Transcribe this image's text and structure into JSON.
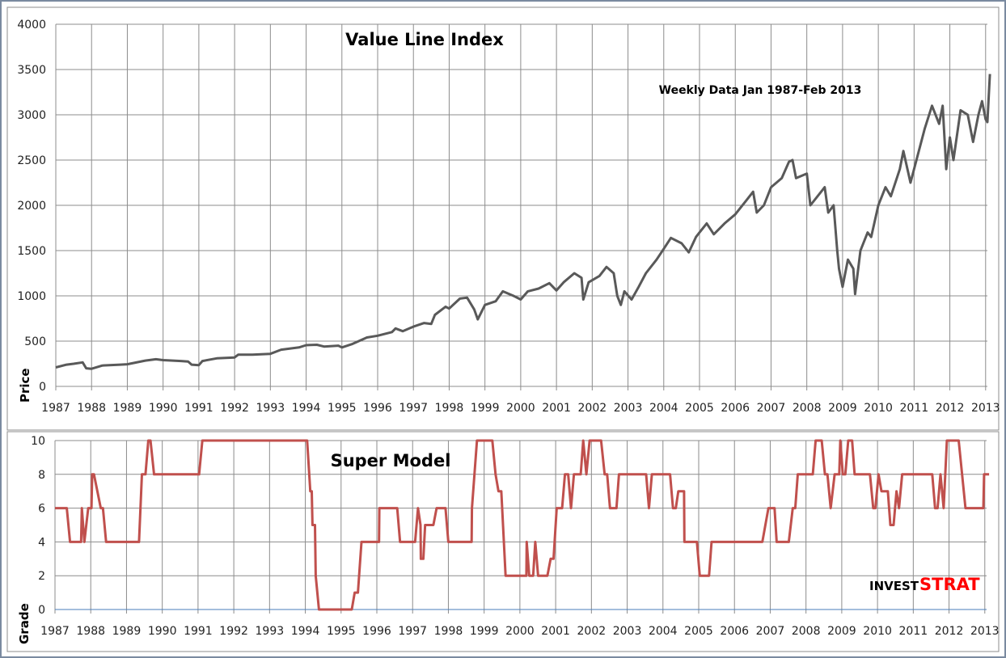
{
  "chart_data": [
    {
      "type": "line",
      "title": "Value Line Index",
      "subtitle": "Weekly Data Jan 1987-Feb 2013",
      "xlabel": "",
      "ylabel": "Price",
      "xlim": [
        1987,
        2013.05
      ],
      "ylim": [
        0,
        4000
      ],
      "yticks": [
        0,
        500,
        1000,
        1500,
        2000,
        2500,
        3000,
        3500,
        4000
      ],
      "xticks": [
        1987,
        1988,
        1989,
        1990,
        1991,
        1992,
        1993,
        1994,
        1995,
        1996,
        1997,
        1998,
        1999,
        2000,
        2001,
        2002,
        2003,
        2004,
        2005,
        2006,
        2007,
        2008,
        2009,
        2010,
        2011,
        2012,
        2013
      ],
      "grid": true,
      "line_color": "#595959",
      "points": [
        [
          1987.0,
          210
        ],
        [
          1987.3,
          240
        ],
        [
          1987.5,
          250
        ],
        [
          1987.75,
          265
        ],
        [
          1987.85,
          200
        ],
        [
          1988.0,
          195
        ],
        [
          1988.3,
          230
        ],
        [
          1988.8,
          240
        ],
        [
          1989.0,
          245
        ],
        [
          1989.5,
          285
        ],
        [
          1989.8,
          300
        ],
        [
          1990.0,
          290
        ],
        [
          1990.5,
          280
        ],
        [
          1990.7,
          275
        ],
        [
          1990.8,
          240
        ],
        [
          1991.0,
          235
        ],
        [
          1991.1,
          280
        ],
        [
          1991.5,
          310
        ],
        [
          1992.0,
          320
        ],
        [
          1992.1,
          350
        ],
        [
          1992.5,
          350
        ],
        [
          1993.0,
          360
        ],
        [
          1993.3,
          405
        ],
        [
          1993.8,
          430
        ],
        [
          1994.0,
          455
        ],
        [
          1994.3,
          460
        ],
        [
          1994.5,
          440
        ],
        [
          1994.9,
          450
        ],
        [
          1995.0,
          430
        ],
        [
          1995.3,
          470
        ],
        [
          1995.7,
          540
        ],
        [
          1996.0,
          560
        ],
        [
          1996.4,
          600
        ],
        [
          1996.5,
          640
        ],
        [
          1996.7,
          610
        ],
        [
          1997.0,
          660
        ],
        [
          1997.3,
          700
        ],
        [
          1997.5,
          690
        ],
        [
          1997.6,
          790
        ],
        [
          1997.9,
          880
        ],
        [
          1998.0,
          860
        ],
        [
          1998.3,
          970
        ],
        [
          1998.5,
          980
        ],
        [
          1998.7,
          850
        ],
        [
          1998.8,
          740
        ],
        [
          1999.0,
          900
        ],
        [
          1999.3,
          940
        ],
        [
          1999.5,
          1050
        ],
        [
          1999.8,
          1000
        ],
        [
          2000.0,
          960
        ],
        [
          2000.2,
          1050
        ],
        [
          2000.5,
          1080
        ],
        [
          2000.8,
          1140
        ],
        [
          2001.0,
          1060
        ],
        [
          2001.2,
          1150
        ],
        [
          2001.5,
          1250
        ],
        [
          2001.7,
          1200
        ],
        [
          2001.75,
          960
        ],
        [
          2001.9,
          1150
        ],
        [
          2002.2,
          1220
        ],
        [
          2002.4,
          1320
        ],
        [
          2002.6,
          1250
        ],
        [
          2002.7,
          1000
        ],
        [
          2002.8,
          900
        ],
        [
          2002.9,
          1050
        ],
        [
          2003.1,
          960
        ],
        [
          2003.3,
          1100
        ],
        [
          2003.5,
          1250
        ],
        [
          2003.8,
          1400
        ],
        [
          2004.0,
          1520
        ],
        [
          2004.2,
          1640
        ],
        [
          2004.5,
          1580
        ],
        [
          2004.7,
          1480
        ],
        [
          2004.9,
          1650
        ],
        [
          2005.0,
          1700
        ],
        [
          2005.2,
          1800
        ],
        [
          2005.4,
          1680
        ],
        [
          2005.7,
          1800
        ],
        [
          2006.0,
          1900
        ],
        [
          2006.3,
          2050
        ],
        [
          2006.5,
          2150
        ],
        [
          2006.6,
          1920
        ],
        [
          2006.8,
          2000
        ],
        [
          2007.0,
          2200
        ],
        [
          2007.3,
          2300
        ],
        [
          2007.5,
          2480
        ],
        [
          2007.6,
          2500
        ],
        [
          2007.7,
          2300
        ],
        [
          2008.0,
          2350
        ],
        [
          2008.1,
          2000
        ],
        [
          2008.4,
          2150
        ],
        [
          2008.5,
          2200
        ],
        [
          2008.6,
          1920
        ],
        [
          2008.75,
          2000
        ],
        [
          2008.85,
          1500
        ],
        [
          2008.9,
          1300
        ],
        [
          2009.0,
          1100
        ],
        [
          2009.15,
          1400
        ],
        [
          2009.3,
          1300
        ],
        [
          2009.35,
          1020
        ],
        [
          2009.5,
          1500
        ],
        [
          2009.7,
          1700
        ],
        [
          2009.8,
          1650
        ],
        [
          2010.0,
          2000
        ],
        [
          2010.2,
          2200
        ],
        [
          2010.35,
          2100
        ],
        [
          2010.6,
          2400
        ],
        [
          2010.7,
          2600
        ],
        [
          2010.9,
          2250
        ],
        [
          2011.0,
          2400
        ],
        [
          2011.3,
          2850
        ],
        [
          2011.5,
          3100
        ],
        [
          2011.7,
          2900
        ],
        [
          2011.8,
          3100
        ],
        [
          2011.9,
          2400
        ],
        [
          2012.0,
          2750
        ],
        [
          2012.1,
          2500
        ],
        [
          2012.3,
          3050
        ],
        [
          2012.5,
          3000
        ],
        [
          2012.65,
          2700
        ],
        [
          2012.8,
          3000
        ],
        [
          2012.9,
          3150
        ],
        [
          2013.0,
          2950
        ],
        [
          2013.05,
          2920
        ],
        [
          2013.12,
          3450
        ]
      ]
    },
    {
      "type": "line",
      "title": "Super Model",
      "xlabel": "",
      "ylabel": "Grade",
      "xlim": [
        1987,
        2013.05
      ],
      "ylim": [
        0,
        10
      ],
      "yticks": [
        0,
        2,
        4,
        6,
        8,
        10
      ],
      "xticks": [
        1987,
        1988,
        1989,
        1990,
        1991,
        1992,
        1993,
        1994,
        1995,
        1996,
        1997,
        1998,
        1999,
        2000,
        2001,
        2002,
        2003,
        2004,
        2005,
        2006,
        2007,
        2008,
        2009,
        2010,
        2011,
        2012,
        2013
      ],
      "grid": true,
      "line_color": "#c0504d",
      "points": [
        [
          1987.0,
          6
        ],
        [
          1987.33,
          6
        ],
        [
          1987.42,
          4
        ],
        [
          1987.73,
          4
        ],
        [
          1987.75,
          6
        ],
        [
          1987.82,
          4
        ],
        [
          1987.93,
          6
        ],
        [
          1988.02,
          6
        ],
        [
          1988.04,
          8
        ],
        [
          1988.09,
          8
        ],
        [
          1988.28,
          6
        ],
        [
          1988.34,
          6
        ],
        [
          1988.43,
          4
        ],
        [
          1989.35,
          4
        ],
        [
          1989.43,
          8
        ],
        [
          1989.53,
          8
        ],
        [
          1989.61,
          10
        ],
        [
          1989.67,
          10
        ],
        [
          1989.77,
          8
        ],
        [
          1991.03,
          8
        ],
        [
          1991.12,
          10
        ],
        [
          1994.05,
          10
        ],
        [
          1994.14,
          7
        ],
        [
          1994.18,
          7
        ],
        [
          1994.2,
          5
        ],
        [
          1994.27,
          5
        ],
        [
          1994.29,
          2
        ],
        [
          1994.38,
          0
        ],
        [
          1995.3,
          0
        ],
        [
          1995.38,
          1
        ],
        [
          1995.47,
          1
        ],
        [
          1995.57,
          4
        ],
        [
          1996.06,
          4
        ],
        [
          1996.07,
          6
        ],
        [
          1996.57,
          6
        ],
        [
          1996.65,
          4
        ],
        [
          1997.07,
          4
        ],
        [
          1997.15,
          6
        ],
        [
          1997.22,
          5
        ],
        [
          1997.23,
          3
        ],
        [
          1997.3,
          3
        ],
        [
          1997.35,
          5
        ],
        [
          1997.58,
          5
        ],
        [
          1997.67,
          6
        ],
        [
          1997.92,
          6
        ],
        [
          1998.0,
          4
        ],
        [
          1998.65,
          4
        ],
        [
          1998.66,
          6
        ],
        [
          1998.8,
          10
        ],
        [
          1999.23,
          10
        ],
        [
          1999.32,
          8
        ],
        [
          1999.4,
          7
        ],
        [
          1999.48,
          7
        ],
        [
          1999.6,
          2
        ],
        [
          2000.18,
          2
        ],
        [
          2000.19,
          4
        ],
        [
          2000.26,
          2
        ],
        [
          2000.37,
          2
        ],
        [
          2000.43,
          4
        ],
        [
          2000.51,
          2
        ],
        [
          2000.77,
          2
        ],
        [
          2000.86,
          3
        ],
        [
          2000.94,
          3
        ],
        [
          2001.03,
          6
        ],
        [
          2001.18,
          6
        ],
        [
          2001.26,
          8
        ],
        [
          2001.35,
          8
        ],
        [
          2001.43,
          6
        ],
        [
          2001.51,
          8
        ],
        [
          2001.7,
          8
        ],
        [
          2001.77,
          10
        ],
        [
          2001.86,
          8
        ],
        [
          2001.95,
          10
        ],
        [
          2002.27,
          10
        ],
        [
          2002.37,
          8
        ],
        [
          2002.44,
          8
        ],
        [
          2002.52,
          6
        ],
        [
          2002.7,
          6
        ],
        [
          2002.77,
          8
        ],
        [
          2003.53,
          8
        ],
        [
          2003.61,
          6
        ],
        [
          2003.69,
          8
        ],
        [
          2004.2,
          8
        ],
        [
          2004.28,
          6
        ],
        [
          2004.36,
          6
        ],
        [
          2004.43,
          7
        ],
        [
          2004.59,
          7
        ],
        [
          2004.6,
          4
        ],
        [
          2004.95,
          4
        ],
        [
          2005.03,
          2
        ],
        [
          2005.29,
          2
        ],
        [
          2005.36,
          4
        ],
        [
          2006.78,
          4
        ],
        [
          2006.95,
          6
        ],
        [
          2007.12,
          6
        ],
        [
          2007.18,
          4
        ],
        [
          2007.52,
          4
        ],
        [
          2007.63,
          6
        ],
        [
          2007.7,
          6
        ],
        [
          2007.77,
          8
        ],
        [
          2008.19,
          8
        ],
        [
          2008.27,
          10
        ],
        [
          2008.44,
          10
        ],
        [
          2008.53,
          8
        ],
        [
          2008.6,
          8
        ],
        [
          2008.69,
          6
        ],
        [
          2008.8,
          8
        ],
        [
          2008.93,
          8
        ],
        [
          2008.96,
          10
        ],
        [
          2009.03,
          8
        ],
        [
          2009.1,
          8
        ],
        [
          2009.18,
          10
        ],
        [
          2009.29,
          10
        ],
        [
          2009.36,
          8
        ],
        [
          2009.79,
          8
        ],
        [
          2009.88,
          6
        ],
        [
          2009.94,
          6
        ],
        [
          2010.03,
          8
        ],
        [
          2010.11,
          7
        ],
        [
          2010.29,
          7
        ],
        [
          2010.36,
          5
        ],
        [
          2010.45,
          5
        ],
        [
          2010.53,
          7
        ],
        [
          2010.6,
          6
        ],
        [
          2010.69,
          8
        ],
        [
          2011.53,
          8
        ],
        [
          2011.61,
          6
        ],
        [
          2011.68,
          6
        ],
        [
          2011.76,
          8
        ],
        [
          2011.85,
          6
        ],
        [
          2011.94,
          10
        ],
        [
          2012.27,
          10
        ],
        [
          2012.46,
          6
        ],
        [
          2012.96,
          6
        ],
        [
          2012.98,
          8
        ],
        [
          2013.12,
          8
        ]
      ]
    }
  ],
  "logo": {
    "part1": "INVEST",
    "part2": "STRAT",
    "part1_color": "#000000",
    "part2_color": "#ff0000"
  }
}
